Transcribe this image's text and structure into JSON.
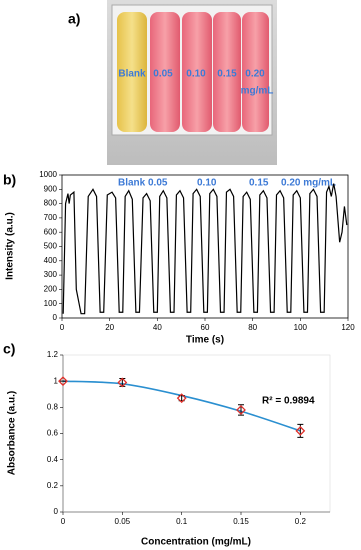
{
  "photo": {
    "label": "a)",
    "labels": [
      "Blank",
      "0.05",
      "0.10",
      "0.15",
      "0.20",
      "mg/mL"
    ]
  },
  "chart_data": [
    {
      "type": "line",
      "panel_label": "b)",
      "xlabel": "Time (s)",
      "ylabel": "Intensity (a.u.)",
      "annotations": [
        "Blank",
        "0.05",
        "0.10",
        "0.15",
        "0.20 mg/mL"
      ],
      "x": [
        0.5,
        1.5,
        2.5,
        3,
        3.5,
        5,
        6,
        8,
        9.5,
        11,
        13,
        14.5,
        16,
        17.5,
        19,
        21,
        22.5,
        24,
        25.5,
        26.5,
        28,
        29.5,
        31,
        32.5,
        34,
        35.5,
        37,
        38.5,
        40,
        41,
        42.5,
        44,
        45.5,
        47,
        48,
        49.5,
        51,
        52.5,
        54,
        55,
        56.5,
        58,
        59.5,
        61,
        62,
        63.5,
        65,
        66.5,
        68,
        69,
        70.5,
        72,
        73.5,
        75,
        76,
        77.5,
        79,
        80.5,
        82,
        83,
        84.5,
        86,
        87.5,
        89,
        90,
        91.5,
        93,
        94.5,
        96,
        97,
        98.5,
        100,
        101.5,
        103,
        104,
        105.5,
        107,
        108.5,
        110,
        111,
        112,
        113,
        114,
        115,
        116.5,
        117.5,
        118.5,
        119.5
      ],
      "series": [
        {
          "color": "#000000",
          "values": [
            30,
            800,
            870,
            800,
            860,
            880,
            200,
            30,
            30,
            850,
            900,
            850,
            40,
            40,
            860,
            880,
            840,
            40,
            40,
            850,
            890,
            830,
            40,
            40,
            840,
            870,
            820,
            40,
            40,
            850,
            890,
            840,
            40,
            40,
            860,
            890,
            840,
            40,
            40,
            870,
            900,
            850,
            40,
            40,
            870,
            900,
            850,
            40,
            40,
            880,
            900,
            850,
            40,
            40,
            850,
            880,
            830,
            40,
            40,
            860,
            890,
            840,
            40,
            40,
            860,
            890,
            840,
            40,
            40,
            860,
            890,
            840,
            40,
            40,
            870,
            900,
            850,
            40,
            40,
            880,
            920,
            850,
            940,
            850,
            530,
            600,
            780,
            650
          ]
        }
      ],
      "xlim": [
        0,
        120
      ],
      "ylim": [
        0,
        1000
      ],
      "xticks": [
        0,
        20,
        40,
        60,
        80,
        100,
        120
      ],
      "yticks": [
        0,
        100,
        200,
        300,
        400,
        500,
        600,
        700,
        800,
        900,
        1000
      ]
    },
    {
      "type": "scatter",
      "panel_label": "c)",
      "xlabel": "Concentration (mg/mL)",
      "ylabel": "Absorbance (a.u.)",
      "annotations": [
        "R² = 0.9894"
      ],
      "x": [
        0,
        0.05,
        0.1,
        0.15,
        0.2
      ],
      "series": [
        {
          "color": "#e0302a",
          "style": "markers",
          "values": [
            1,
            0.99,
            0.87,
            0.78,
            0.62
          ],
          "errors": [
            0,
            0.03,
            0.02,
            0.04,
            0.05
          ]
        },
        {
          "color": "#2a8fd0",
          "style": "line",
          "values": [
            1,
            0.98,
            0.89,
            0.77,
            0.62
          ]
        }
      ],
      "xlim": [
        0,
        0.225
      ],
      "ylim": [
        0,
        1.2
      ],
      "xticks": [
        0,
        0.05,
        0.1,
        0.15,
        0.2
      ],
      "yticks": [
        0,
        0.2,
        0.4,
        0.6,
        0.8,
        1,
        1.2
      ]
    }
  ]
}
